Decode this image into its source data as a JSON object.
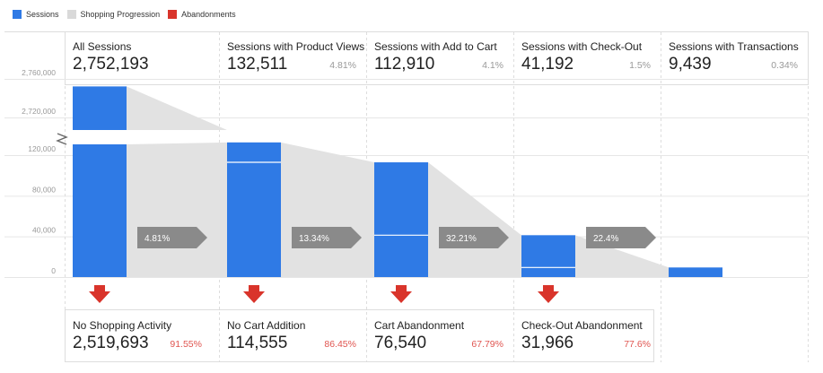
{
  "legend": [
    {
      "label": "Sessions",
      "color": "#2f7ae5"
    },
    {
      "label": "Shopping Progression",
      "color": "#d9d9d9"
    },
    {
      "label": "Abandonments",
      "color": "#d9342b"
    }
  ],
  "chart_data": {
    "type": "bar",
    "title": "",
    "xlabel": "",
    "ylabel": "",
    "y_axis": {
      "broken": true,
      "lower_ticks": [
        "0",
        "40,000",
        "80,000",
        "120,000"
      ],
      "upper_ticks": [
        "2,720,000",
        "2,760,000"
      ],
      "lower_range": [
        0,
        130000
      ],
      "upper_range": [
        2705000,
        2765000
      ]
    },
    "stages": [
      {
        "name": "All Sessions",
        "value": "2,752,193",
        "sessions": 2752193,
        "pct": ""
      },
      {
        "name": "Sessions with Product Views",
        "value": "132,511",
        "sessions": 132511,
        "pct": "4.81%"
      },
      {
        "name": "Sessions with Add to Cart",
        "value": "112,910",
        "sessions": 112910,
        "pct": "4.1%"
      },
      {
        "name": "Sessions with Check-Out",
        "value": "41,192",
        "sessions": 41192,
        "pct": "1.5%"
      },
      {
        "name": "Sessions with Transactions",
        "value": "9,439",
        "sessions": 9439,
        "pct": "0.34%"
      }
    ],
    "progression": [
      "4.81%",
      "13.34%",
      "32.21%",
      "22.4%"
    ],
    "abandonments": [
      {
        "name": "No Shopping Activity",
        "value": "2,519,693",
        "pct": "91.55%"
      },
      {
        "name": "No Cart Addition",
        "value": "114,555",
        "pct": "86.45%"
      },
      {
        "name": "Cart Abandonment",
        "value": "76,540",
        "pct": "67.79%"
      },
      {
        "name": "Check-Out Abandonment",
        "value": "31,966",
        "pct": "77.6%"
      }
    ]
  }
}
